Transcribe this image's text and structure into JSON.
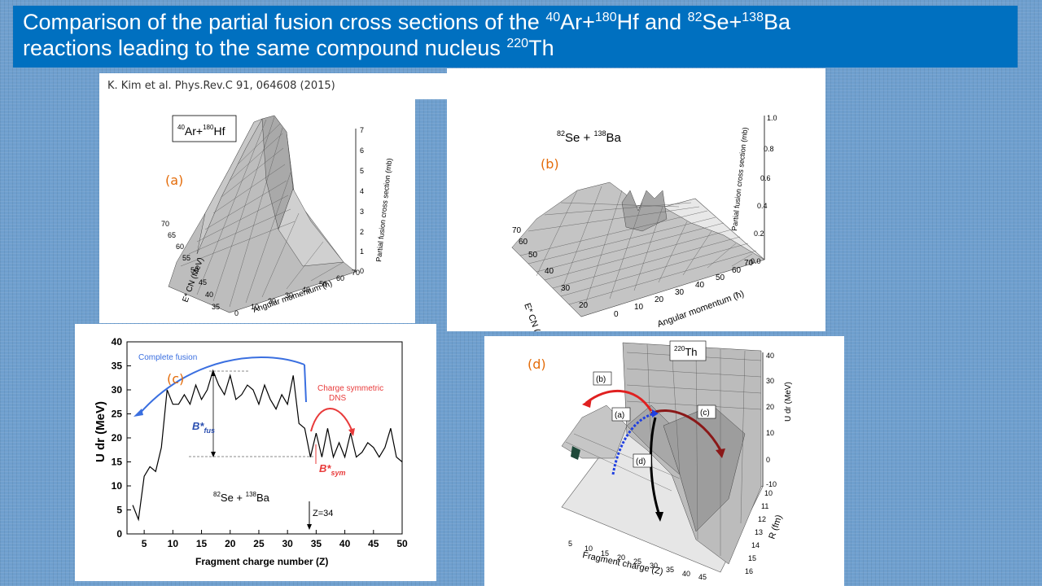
{
  "title": {
    "line1_a": "Comparison of the partial fusion cross sections of the ",
    "iso1_mass": "40",
    "iso1": "Ar+",
    "iso2_mass": "180",
    "iso2": "Hf and ",
    "iso3_mass": "82",
    "iso3": "Se+",
    "iso4_mass": "138",
    "iso4": "Ba",
    "line2": "reactions leading to the same compound nucleus ",
    "iso5_mass": "220",
    "iso5": "Th"
  },
  "citation": "K. Kim et al. Phys.Rev.C 91, 064608 (2015)",
  "panel_a": {
    "label": "(a)",
    "reaction_mass1": "40",
    "reaction_el1": "Ar+",
    "reaction_mass2": "180",
    "reaction_el2": "Hf",
    "zlabel": "Partial fusion cross section (mb)",
    "xlabel": "Angular momentum (ħ)",
    "ylabel": "E* CN (MeV)",
    "zticks": [
      "0",
      "1",
      "2",
      "3",
      "4",
      "5",
      "6",
      "7"
    ],
    "xticks": [
      "0",
      "10",
      "20",
      "30",
      "40",
      "50",
      "60",
      "70"
    ],
    "yticks": [
      "35",
      "40",
      "45",
      "50",
      "55",
      "60",
      "65",
      "70"
    ]
  },
  "panel_b": {
    "label": "(b)",
    "reaction_mass1": "82",
    "reaction_el1": "Se + ",
    "reaction_mass2": "138",
    "reaction_el2": "Ba",
    "zlabel": "Partial fusion cross section (mb)",
    "xlabel": "Angular momentum (ħ)",
    "ylabel": "E* CN (MeV)",
    "zticks": [
      "0.0",
      "0.2",
      "0.4",
      "0.6",
      "0.8",
      "1.0"
    ],
    "xticks": [
      "0",
      "10",
      "20",
      "30",
      "40",
      "50",
      "60",
      "70"
    ],
    "yticks": [
      "20",
      "30",
      "40",
      "50",
      "60",
      "70"
    ]
  },
  "panel_c": {
    "label": "(c)",
    "ylabel": "U dr (MeV)",
    "xlabel": "Fragment charge number (Z)",
    "reaction": "82Se + 138Ba",
    "reaction_mass1": "82",
    "reaction_el1": "Se + ",
    "reaction_mass2": "138",
    "reaction_el2": "Ba",
    "complete_fusion": "Complete fusion",
    "charge_symmetric": "Charge symmetric",
    "dns": "DNS",
    "b_fus": "B*",
    "b_fus_sub": "fus",
    "b_sym": "B*",
    "b_sym_sub": "sym",
    "z_marker": "Z=34",
    "yticks": [
      "0",
      "5",
      "10",
      "15",
      "20",
      "25",
      "30",
      "35",
      "40"
    ],
    "xticks": [
      "5",
      "10",
      "15",
      "20",
      "25",
      "30",
      "35",
      "40",
      "45",
      "50"
    ]
  },
  "chart_data": {
    "type": "line",
    "title": "",
    "xlabel": "Fragment charge number (Z)",
    "ylabel": "U dr (MeV)",
    "xlim": [
      2,
      50
    ],
    "ylim": [
      0,
      40
    ],
    "grid": false,
    "x": [
      3,
      4,
      5,
      6,
      7,
      8,
      9,
      10,
      11,
      12,
      13,
      14,
      15,
      16,
      17,
      18,
      19,
      20,
      21,
      22,
      23,
      24,
      25,
      26,
      27,
      28,
      29,
      30,
      31,
      32,
      33,
      34,
      35,
      36,
      37,
      38,
      39,
      40,
      41,
      42,
      43,
      44,
      45,
      46,
      47,
      48,
      49,
      50
    ],
    "series": [
      {
        "name": "",
        "values": [
          6,
          3,
          12,
          14,
          13,
          18,
          30,
          27,
          27,
          29,
          27,
          31,
          28,
          30,
          34,
          31,
          29,
          33,
          28,
          29,
          31,
          30,
          27,
          31,
          28,
          26,
          29,
          27,
          33,
          23,
          22,
          16,
          21,
          16,
          22,
          16,
          19,
          16,
          21,
          16,
          17,
          19,
          18,
          16,
          18,
          22,
          16,
          15
        ]
      }
    ]
  },
  "panel_d": {
    "label": "(d)",
    "nucleus_mass": "220",
    "nucleus_el": "Th",
    "zlabel": "U dr (MeV)",
    "xlabel": "Fragment charge (Z)",
    "ylabel": "R (fm)",
    "tag_a": "(a)",
    "tag_b": "(b)",
    "tag_c": "(c)",
    "tag_d": "(d)",
    "zticks": [
      "-10",
      "0",
      "10",
      "20",
      "30",
      "40"
    ],
    "xticks": [
      "5",
      "10",
      "15",
      "20",
      "25",
      "30",
      "35",
      "40",
      "45"
    ],
    "yticks": [
      "10",
      "11",
      "12",
      "13",
      "14",
      "15",
      "16"
    ]
  }
}
